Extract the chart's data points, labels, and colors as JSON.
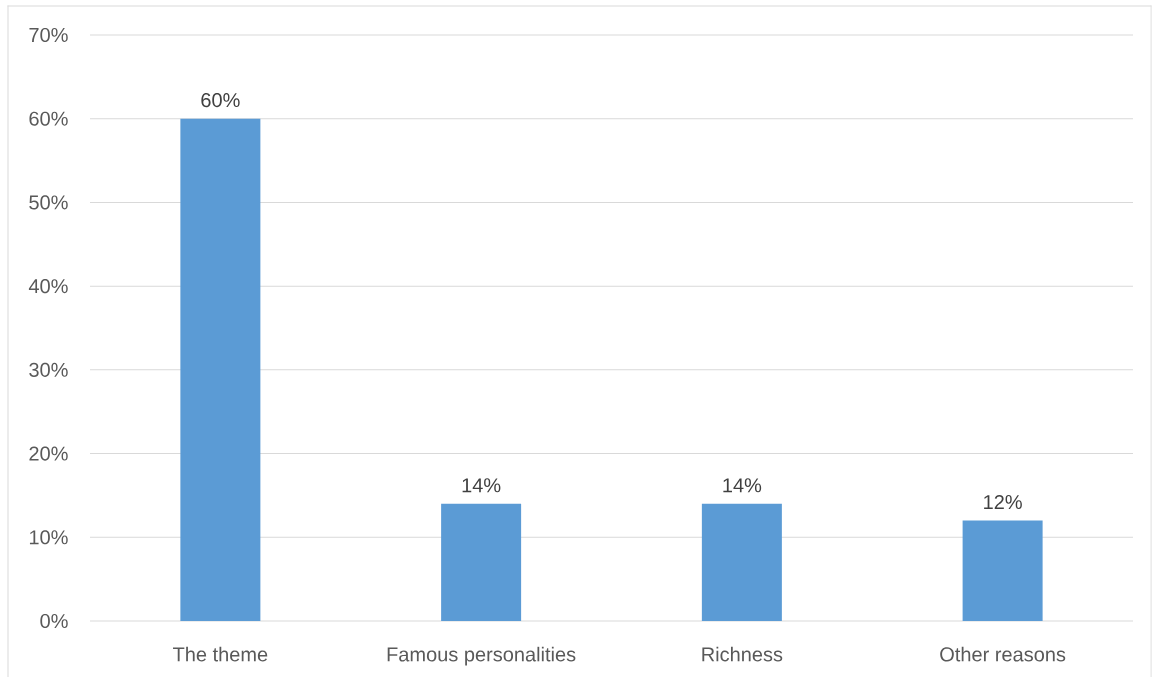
{
  "chart_data": {
    "type": "bar",
    "categories": [
      "The theme",
      "Famous personalities",
      "Richness",
      "Other reasons"
    ],
    "values": [
      60,
      14,
      14,
      12
    ],
    "value_labels": [
      "60%",
      "14%",
      "14%",
      "12%"
    ],
    "color": "#5b9bd5",
    "ylim": [
      0,
      70
    ],
    "yticks": [
      {
        "value": 0,
        "label": "0%"
      },
      {
        "value": 10,
        "label": "10%"
      },
      {
        "value": 20,
        "label": "20%"
      },
      {
        "value": 30,
        "label": "30%"
      },
      {
        "value": 40,
        "label": "40%"
      },
      {
        "value": 50,
        "label": "50%"
      },
      {
        "value": 60,
        "label": "60%"
      },
      {
        "value": 70,
        "label": "70%"
      }
    ],
    "grid": "y"
  }
}
